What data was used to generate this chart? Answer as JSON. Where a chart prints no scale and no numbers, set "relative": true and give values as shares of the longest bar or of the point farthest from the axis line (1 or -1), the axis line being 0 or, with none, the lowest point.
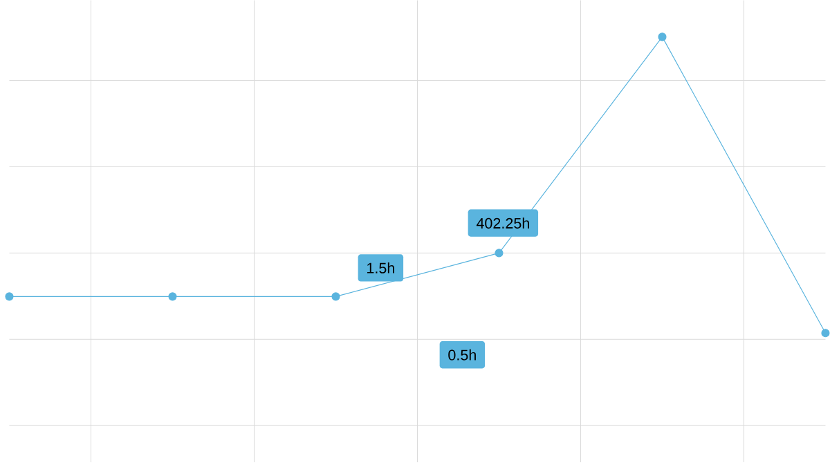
{
  "chart_data": {
    "type": "line",
    "relative": true,
    "marker": "circle",
    "grid": true,
    "categories": [
      null,
      null,
      null,
      null,
      null,
      null
    ],
    "series": [
      {
        "color": "#5ab4de",
        "values": [
          0.332,
          0.332,
          0.332,
          0.444,
          1,
          0.238
        ]
      }
    ],
    "annotations": [
      "1.5h",
      "402.25h",
      "0.5h"
    ]
  }
}
